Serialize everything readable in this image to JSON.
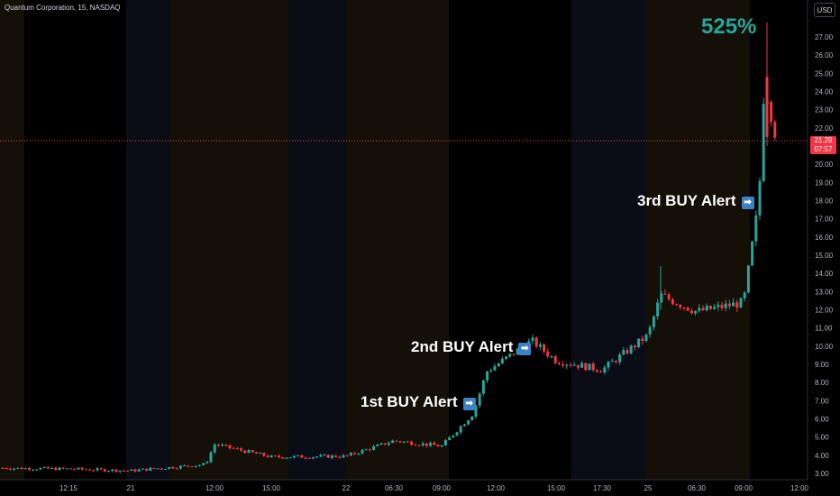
{
  "header": {
    "symbol_title": "Quantum Corporation, 15, NASDAQ",
    "currency_button": "USD"
  },
  "annotations": {
    "gain_label": "525%",
    "alerts": [
      {
        "label": "1st BUY Alert",
        "arrow": "➡"
      },
      {
        "label": "2nd BUY Alert",
        "arrow": "➡"
      },
      {
        "label": "3rd BUY Alert",
        "arrow": "➡"
      }
    ]
  },
  "last_price": {
    "price": "21.29",
    "countdown": "07:57"
  },
  "colors": {
    "up": "#26a69a",
    "down": "#f23645",
    "background": "#000000",
    "accent_percent": "#26a69a",
    "alert_arrow": "#3b82c4"
  },
  "chart_data": {
    "type": "candlestick",
    "title": "Quantum Corporation, 15, NASDAQ",
    "y_axis": {
      "ticks": [
        3,
        4,
        5,
        6,
        7,
        8,
        9,
        10,
        11,
        12,
        13,
        14,
        15,
        16,
        17,
        18,
        19,
        20,
        22,
        23,
        24,
        25,
        26,
        27
      ],
      "tick_labels": [
        "3.00",
        "4.00",
        "5.00",
        "6.00",
        "7.00",
        "8.00",
        "9.00",
        "10.00",
        "11.00",
        "12.00",
        "13.00",
        "14.00",
        "15.00",
        "16.00",
        "17.00",
        "18.00",
        "19.00",
        "20.00",
        "22.00",
        "23.00",
        "24.00",
        "25.00",
        "26.00",
        "27.00"
      ],
      "ylim": [
        2.6,
        28.0
      ],
      "currency": "USD"
    },
    "x_axis": {
      "tick_labels": [
        "12:15",
        "21",
        "12:00",
        "15:00",
        "22",
        "06:30",
        "09:00",
        "12:00",
        "15:00",
        "17:30",
        "25",
        "06:30",
        "09:00",
        "12:00"
      ]
    },
    "last_price_line": 21.29,
    "price_path": [
      {
        "time": "20 start",
        "close": 3.3
      },
      {
        "time": "12:15",
        "close": 3.25
      },
      {
        "time": "21",
        "close": 3.15
      },
      {
        "time": "12:00",
        "close": 3.5
      },
      {
        "time": "12:00 spike",
        "close": 4.6
      },
      {
        "time": "15:00",
        "close": 3.9
      },
      {
        "time": "22",
        "close": 3.95
      },
      {
        "time": "06:30",
        "close": 4.8
      },
      {
        "time": "09:00",
        "close": 4.5
      },
      {
        "time": "1st BUY Alert",
        "close": 6.3
      },
      {
        "time": "12:00",
        "close": 8.6
      },
      {
        "time": "2nd BUY Alert",
        "close": 10.3
      },
      {
        "time": "15:00",
        "close": 9.2
      },
      {
        "time": "17:30",
        "close": 8.7
      },
      {
        "time": "25",
        "close": 10.6
      },
      {
        "time": "25 high",
        "close": 12.8
      },
      {
        "time": "06:30",
        "close": 11.9
      },
      {
        "time": "09:00",
        "close": 12.4
      },
      {
        "time": "3rd BUY Alert",
        "close": 18.0
      },
      {
        "time": "peak",
        "close": 24.6
      },
      {
        "time": "last",
        "close": 21.29
      }
    ]
  }
}
